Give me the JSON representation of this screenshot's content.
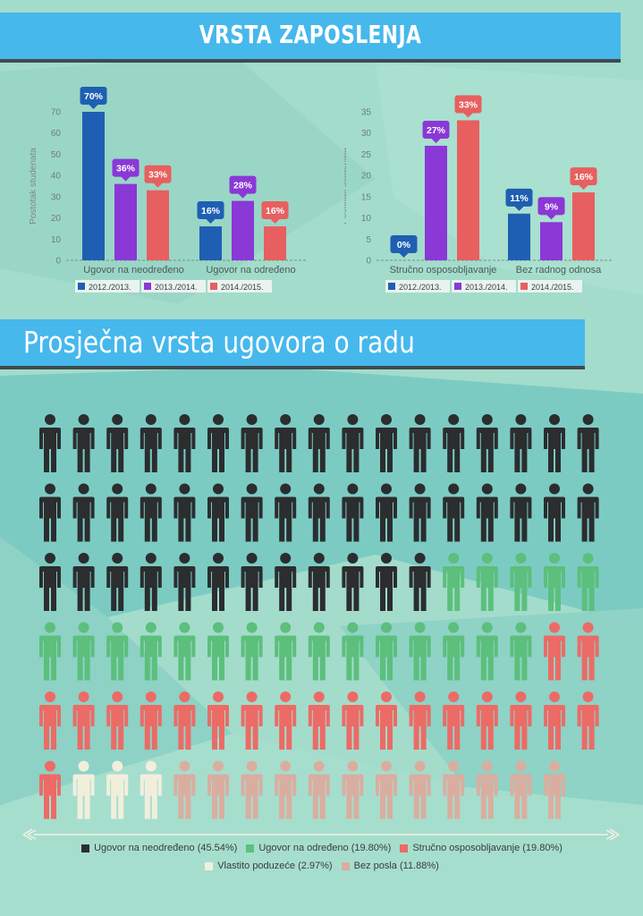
{
  "colors": {
    "y2012": "#1f5fb3",
    "y2013": "#8a38d6",
    "y2014": "#e85f5f",
    "neodredeno": "#2b2d2f",
    "odredeno": "#5cbf7c",
    "strucno": "#ec6b66",
    "vlastito": "#f1efdc",
    "bez_posla": "#d9aea0"
  },
  "banner1": {
    "title": "VRSTA ZAPOSLENJA"
  },
  "banner2": {
    "title": "Prosječna vrsta ugovora o radu"
  },
  "chart_data": [
    {
      "type": "bar",
      "ylabel": "Postotak studenata",
      "ylim": [
        0,
        70
      ],
      "yticks": [
        0,
        10,
        20,
        30,
        40,
        50,
        60,
        70
      ],
      "categories": [
        "Ugovor na neodređeno",
        "Ugovor na određeno"
      ],
      "series": [
        {
          "name": "2012./2013.",
          "values": [
            70,
            16
          ],
          "labels": [
            "70%",
            "16%"
          ]
        },
        {
          "name": "2013./2014.",
          "values": [
            36,
            28
          ],
          "labels": [
            "36%",
            "28%"
          ]
        },
        {
          "name": "2014./2015.",
          "values": [
            33,
            16
          ],
          "labels": [
            "33%",
            "16%"
          ]
        }
      ]
    },
    {
      "type": "bar",
      "ylabel": "Postotak studenata",
      "ylim": [
        0,
        35
      ],
      "yticks": [
        0,
        5,
        10,
        15,
        20,
        25,
        30,
        35
      ],
      "categories": [
        "Stručno osposobljavanje",
        "Bez radnog odnosa"
      ],
      "series": [
        {
          "name": "2012./2013.",
          "values": [
            0,
            11
          ],
          "labels": [
            "0%",
            "11%"
          ]
        },
        {
          "name": "2013./2014.",
          "values": [
            27,
            9
          ],
          "labels": [
            "27%",
            "9%"
          ]
        },
        {
          "name": "2014./2015.",
          "values": [
            33,
            16
          ],
          "labels": [
            "33%",
            "16%"
          ]
        }
      ]
    },
    {
      "type": "pictogram",
      "total": 101,
      "per_row": 17,
      "groups": [
        {
          "name": "Ugovor na neodređeno (45.54%)",
          "count": 46,
          "color_key": "neodredeno"
        },
        {
          "name": "Ugovor na određeno (19.80%)",
          "count": 20,
          "color_key": "odredeno"
        },
        {
          "name": "Stručno osposobljavanje (19.80%)",
          "count": 20,
          "color_key": "strucno"
        },
        {
          "name": "Vlastito poduzeće (2.97%)",
          "count": 3,
          "color_key": "vlastito"
        },
        {
          "name": "Bez posla (11.88%)",
          "count": 12,
          "color_key": "bez_posla"
        }
      ]
    }
  ]
}
